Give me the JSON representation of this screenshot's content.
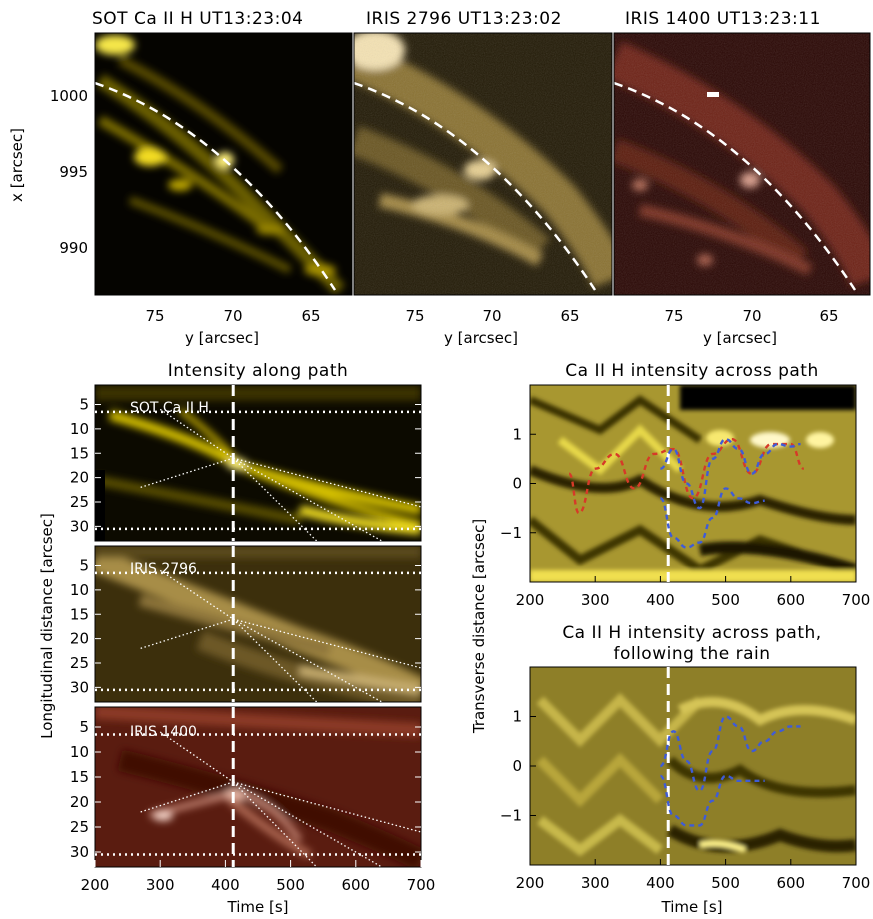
{
  "colors": {
    "sot": "#f2e000",
    "iris2796": "#d8bd62",
    "iris1400": "#b24a30",
    "rain_red": "#d63a28",
    "rain_blue": "#3f5cd6",
    "ca_map": "#f0d830"
  },
  "top_panels": [
    {
      "title": "SOT Ca II H UT13:23:04",
      "xlabel": "y [arcsec]",
      "xticks": [
        "75",
        "70",
        "65"
      ],
      "xlim": [
        78,
        62
      ],
      "ylim": [
        987,
        1004
      ],
      "yticks": [
        "1000",
        "995",
        "990"
      ],
      "ylabel": "x [arcsec]",
      "colormap": "sot"
    },
    {
      "title": "IRIS 2796 UT13:23:02",
      "xlabel": "y [arcsec]",
      "xticks": [
        "75",
        "70",
        "65"
      ],
      "xlim": [
        78,
        62
      ],
      "ylim": [
        987,
        1004
      ],
      "colormap": "iris2796"
    },
    {
      "title": "IRIS 1400 UT13:23:11",
      "xlabel": "y [arcsec]",
      "xticks": [
        "75",
        "70",
        "65"
      ],
      "xlim": [
        78,
        62
      ],
      "ylim": [
        987,
        1004
      ],
      "colormap": "iris1400"
    }
  ],
  "left_column": {
    "title": "Intensity along path",
    "ylabel": "Longitudinal distance [arcsec]",
    "xlabel": "Time [s]",
    "xticks": [
      "200",
      "300",
      "400",
      "500",
      "600",
      "700"
    ],
    "yticks": [
      "5",
      "10",
      "15",
      "20",
      "25",
      "30"
    ],
    "xlim": [
      200,
      700
    ],
    "ylim": [
      33,
      1
    ],
    "panels": [
      {
        "label": "SOT Ca II H",
        "colormap": "sot"
      },
      {
        "label": "IRIS 2796",
        "colormap": "iris2796"
      },
      {
        "label": "IRIS 1400",
        "colormap": "iris1400"
      }
    ]
  },
  "right_column": {
    "ylabel": "Transverse distance [arcsec]",
    "xlabel": "Time [s]",
    "xticks": [
      "200",
      "300",
      "400",
      "500",
      "600",
      "700"
    ],
    "yticks": [
      "1",
      "0",
      "−1"
    ],
    "xlim": [
      200,
      700
    ],
    "ylim": [
      -2,
      2
    ],
    "panels": [
      {
        "title": "Ca II H intensity across path",
        "title2": ""
      },
      {
        "title": "Ca II H intensity across path,",
        "title2": "following the rain"
      }
    ]
  },
  "chart_data": {
    "type": "heatmap",
    "path_guides": {
      "dashed_time_s": 412,
      "dotted_distance_arcsec": [
        6.5,
        30.5
      ]
    },
    "fitted_tracks": [
      {
        "x": [
          300,
          412
        ],
        "y": [
          6,
          16
        ]
      },
      {
        "x": [
          270,
          412
        ],
        "y": [
          22,
          16
        ]
      },
      {
        "x": [
          412,
          700
        ],
        "y": [
          16,
          26
        ]
      },
      {
        "x": [
          412,
          540
        ],
        "y": [
          16,
          33
        ]
      },
      {
        "x": [
          412,
          640
        ],
        "y": [
          16,
          33
        ]
      }
    ],
    "transverse_oscillations": [
      {
        "color": "rain_red",
        "x": [
          260,
          275,
          300,
          330,
          360,
          390,
          420,
          450,
          480,
          510,
          540,
          570,
          600,
          620
        ],
        "y": [
          0.2,
          -0.6,
          0.3,
          0.6,
          -0.1,
          0.6,
          0.7,
          -0.3,
          0.6,
          0.9,
          0.2,
          0.8,
          0.8,
          0.3
        ]
      },
      {
        "color": "rain_blue",
        "x": [
          400,
          420,
          440,
          460,
          480,
          500,
          520,
          540,
          560,
          580,
          600,
          615
        ],
        "y": [
          0.3,
          0.7,
          0.0,
          -0.5,
          0.5,
          0.9,
          0.7,
          0.2,
          0.6,
          0.8,
          0.75,
          0.8
        ]
      },
      {
        "color": "rain_blue",
        "x": [
          400,
          420,
          440,
          460,
          480,
          500,
          520,
          540,
          560
        ],
        "y": [
          -0.3,
          -1.1,
          -1.3,
          -1.2,
          -0.7,
          -0.1,
          -0.3,
          -0.4,
          -0.35
        ]
      }
    ],
    "following_rain": [
      {
        "color": "rain_blue",
        "x": [
          400,
          420,
          440,
          460,
          480,
          500,
          520,
          540,
          560,
          580,
          600,
          615
        ],
        "y": [
          0.0,
          0.7,
          0.1,
          -0.5,
          0.3,
          1.0,
          0.8,
          0.3,
          0.5,
          0.7,
          0.8,
          0.8
        ]
      },
      {
        "color": "rain_blue",
        "x": [
          400,
          420,
          440,
          460,
          480,
          500,
          520,
          540,
          560
        ],
        "y": [
          -0.2,
          -1.0,
          -1.2,
          -1.2,
          -0.7,
          -0.2,
          -0.3,
          -0.3,
          -0.3
        ]
      }
    ]
  }
}
